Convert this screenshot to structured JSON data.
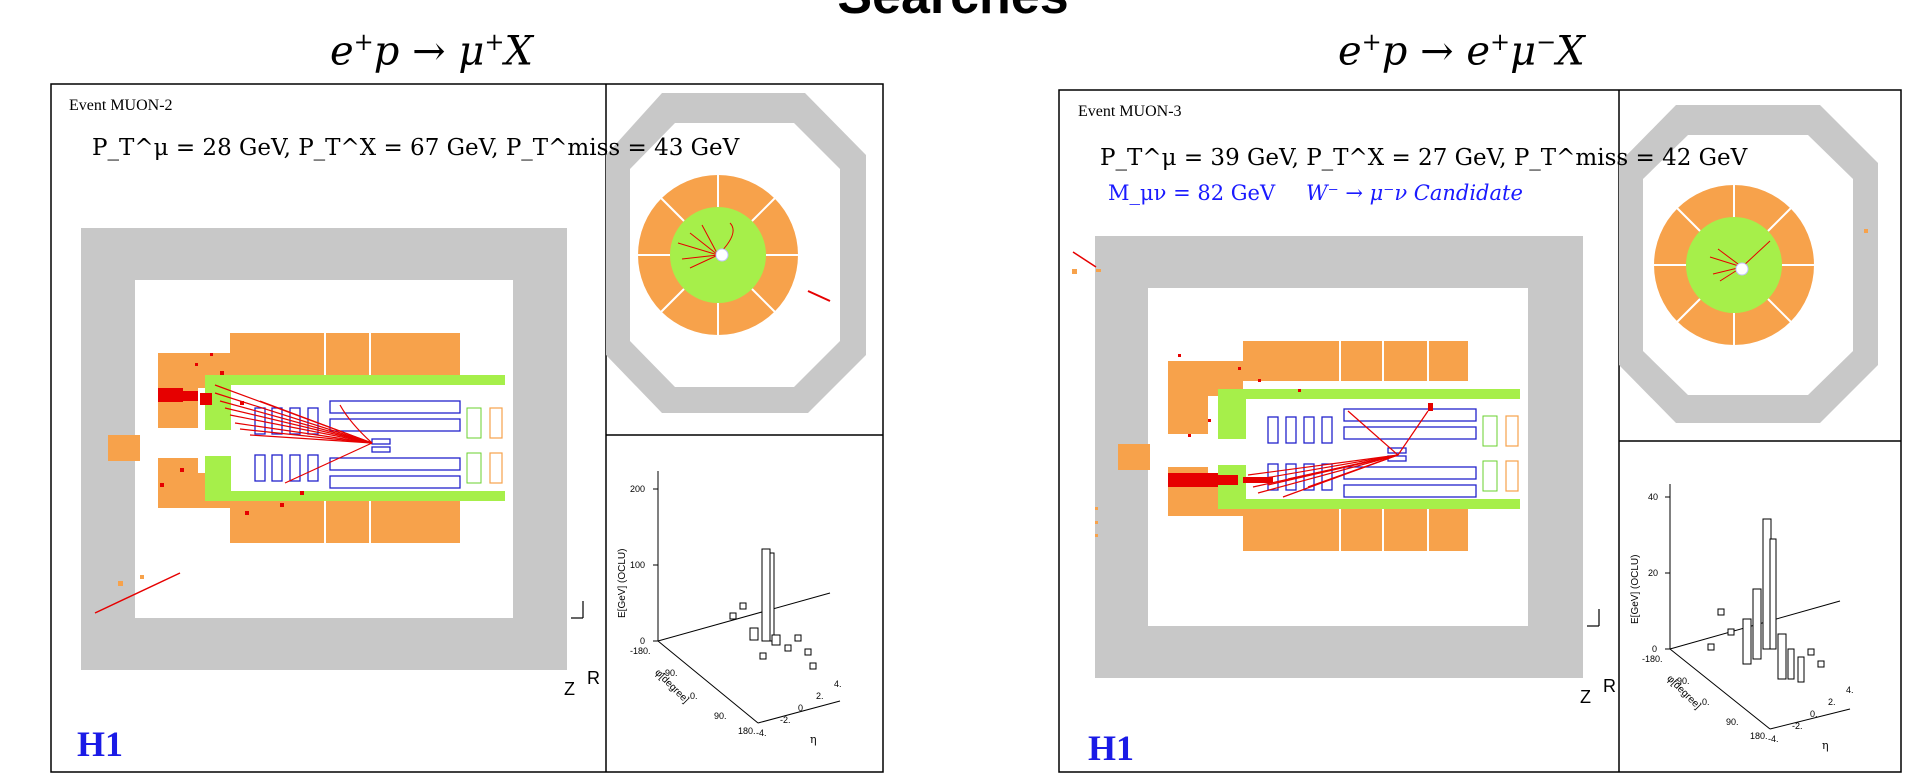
{
  "page": {
    "title": "Searches"
  },
  "panels": [
    {
      "process_html": "e<sup>+</sup>p → μ<sup>+</sup>X",
      "event_label": "Event MUON-2",
      "kinematics": "P_T^μ = 28 GeV, P_T^X = 67 GeV, P_T^miss = 43 GeV",
      "logo": "H1",
      "axis_r": "R",
      "axis_z": "Z",
      "lego": {
        "y_label": "E[GeV] (OCLU)",
        "y_ticks": [
          "0",
          "100",
          "200"
        ],
        "phi_label": "φ[degree]",
        "phi_ticks": [
          "-180.",
          "-90.",
          "0.",
          "90.",
          "180."
        ],
        "eta_label": "η",
        "eta_ticks": [
          "-4.",
          "-2.",
          "0.",
          "2.",
          "4."
        ]
      }
    },
    {
      "process_html": "e<sup>+</sup>p → e<sup>+</sup>μ<sup>−</sup>X",
      "event_label": "Event MUON-3",
      "kinematics": "P_T^μ = 39 GeV, P_T^X = 27 GeV, P_T^miss = 42 GeV",
      "mass_line": "M_μν = 82 GeV",
      "candidate_line": "W⁻ → μ⁻ν  Candidate",
      "logo": "H1",
      "axis_r": "R",
      "axis_z": "Z",
      "lego": {
        "y_label": "E[GeV] (OCLU)",
        "y_ticks": [
          "0",
          "20",
          "40"
        ],
        "phi_label": "φ[degree]",
        "phi_ticks": [
          "-180.",
          "-90.",
          "0.",
          "90.",
          "180."
        ],
        "eta_label": "η",
        "eta_ticks": [
          "-4.",
          "-2.",
          "0.",
          "2.",
          "4."
        ]
      }
    }
  ],
  "colors": {
    "yoke": "#c8c8c8",
    "calorimeter": "#f7a24b",
    "em_calorimeter": "#a6ef4a",
    "tracker": "#2222cc",
    "track": "#e60000",
    "logo": "#1a1ae6"
  }
}
